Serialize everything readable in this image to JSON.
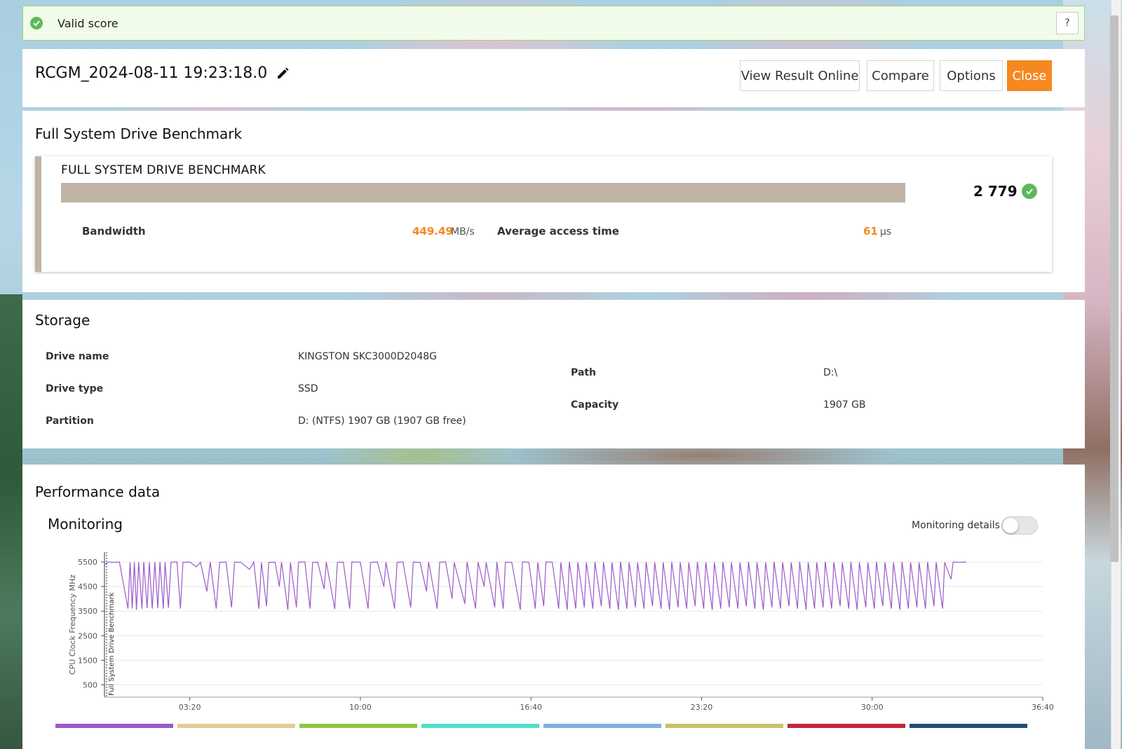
{
  "status": {
    "text": "Valid score",
    "help_label": "?"
  },
  "header": {
    "title": "RCGM_2024-08-11 19:23:18.0",
    "buttons": {
      "view_online": "View Result Online",
      "compare": "Compare",
      "options": "Options",
      "close": "Close"
    }
  },
  "benchmark": {
    "section_title": "Full System Drive Benchmark",
    "name": "FULL SYSTEM DRIVE BENCHMARK",
    "score": "2 779",
    "bandwidth_label": "Bandwidth",
    "bandwidth_value": "449.49",
    "bandwidth_unit": "MB/s",
    "access_label": "Average access time",
    "access_value": "61",
    "access_unit": "μs"
  },
  "storage": {
    "title": "Storage",
    "fields": [
      {
        "label": "Drive name",
        "value": "KINGSTON SKC3000D2048G"
      },
      {
        "label": "Drive type",
        "value": "SSD"
      },
      {
        "label": "Partition",
        "value": "D: (NTFS) 1907 GB (1907 GB free)"
      },
      {
        "label": "Path",
        "value": "D:\\"
      },
      {
        "label": "Capacity",
        "value": "1907 GB"
      }
    ]
  },
  "performance": {
    "title": "Performance data",
    "monitoring_title": "Monitoring",
    "monitoring_details_label": "Monitoring details",
    "monitoring_details_on": false
  },
  "colors": {
    "accent": "#f5891f",
    "bench_bar": "#c0b3a5",
    "valid_green": "#5cb85c",
    "line": "#9b59c9"
  },
  "legend_colors": [
    "#9b59c9",
    "#e2cd93",
    "#8dc63f",
    "#4fe0c8",
    "#7fb1e0",
    "#c5c36a",
    "#c0253b",
    "#1f4e79"
  ],
  "chart_data": {
    "type": "line",
    "ylabel": "CPU Clock Frequency MHz",
    "yticks": [
      500,
      1500,
      2500,
      3500,
      4500,
      5500
    ],
    "ylim": [
      0,
      5900
    ],
    "xticks": [
      "03:20",
      "10:00",
      "16:40",
      "23:20",
      "30:00",
      "36:40"
    ],
    "xlim_seconds": [
      0,
      2200
    ],
    "marker_label": "Full System Drive Benchmark",
    "series": [
      {
        "baseline": 5500,
        "end_seconds": 2020,
        "values": [
          [
            0,
            5400
          ],
          [
            10,
            5500
          ],
          [
            20,
            5480
          ],
          [
            35,
            5500
          ],
          [
            55,
            3600
          ],
          [
            60,
            5480
          ],
          [
            65,
            3600
          ],
          [
            70,
            5490
          ],
          [
            75,
            3550
          ],
          [
            80,
            5480
          ],
          [
            88,
            3600
          ],
          [
            92,
            5500
          ],
          [
            100,
            3620
          ],
          [
            105,
            5480
          ],
          [
            112,
            3600
          ],
          [
            118,
            5490
          ],
          [
            125,
            3620
          ],
          [
            130,
            5500
          ],
          [
            138,
            3600
          ],
          [
            142,
            5480
          ],
          [
            150,
            3630
          ],
          [
            156,
            5490
          ],
          [
            170,
            5500
          ],
          [
            178,
            3600
          ],
          [
            184,
            5480
          ],
          [
            200,
            5500
          ],
          [
            215,
            5300
          ],
          [
            225,
            5490
          ],
          [
            240,
            4300
          ],
          [
            248,
            5500
          ],
          [
            262,
            3600
          ],
          [
            270,
            5480
          ],
          [
            285,
            5500
          ],
          [
            298,
            3650
          ],
          [
            305,
            5490
          ],
          [
            320,
            5480
          ],
          [
            340,
            5200
          ],
          [
            350,
            5500
          ],
          [
            362,
            3600
          ],
          [
            368,
            5490
          ],
          [
            380,
            3700
          ],
          [
            385,
            5480
          ],
          [
            400,
            5490
          ],
          [
            410,
            4500
          ],
          [
            415,
            5500
          ],
          [
            430,
            3550
          ],
          [
            436,
            5480
          ],
          [
            450,
            3650
          ],
          [
            455,
            5490
          ],
          [
            470,
            5500
          ],
          [
            482,
            3600
          ],
          [
            488,
            5480
          ],
          [
            500,
            5490
          ],
          [
            515,
            4400
          ],
          [
            520,
            5500
          ],
          [
            540,
            3580
          ],
          [
            546,
            5480
          ],
          [
            560,
            5490
          ],
          [
            575,
            3600
          ],
          [
            580,
            5500
          ],
          [
            600,
            5490
          ],
          [
            618,
            3600
          ],
          [
            624,
            5480
          ],
          [
            640,
            5500
          ],
          [
            655,
            4500
          ],
          [
            660,
            5490
          ],
          [
            680,
            3600
          ],
          [
            686,
            5480
          ],
          [
            700,
            5500
          ],
          [
            718,
            3650
          ],
          [
            724,
            5490
          ],
          [
            740,
            5480
          ],
          [
            755,
            4300
          ],
          [
            760,
            5500
          ],
          [
            780,
            3600
          ],
          [
            786,
            5490
          ],
          [
            800,
            5500
          ],
          [
            815,
            4000
          ],
          [
            820,
            5480
          ],
          [
            845,
            3800
          ],
          [
            850,
            5500
          ],
          [
            870,
            3600
          ],
          [
            876,
            5490
          ],
          [
            890,
            4500
          ],
          [
            895,
            5480
          ],
          [
            915,
            3650
          ],
          [
            920,
            5500
          ],
          [
            935,
            3600
          ],
          [
            940,
            5490
          ],
          [
            955,
            5480
          ],
          [
            975,
            3550
          ],
          [
            980,
            5500
          ],
          [
            995,
            5490
          ],
          [
            1010,
            3600
          ],
          [
            1016,
            5480
          ],
          [
            1030,
            3700
          ],
          [
            1035,
            5500
          ],
          [
            1050,
            5490
          ],
          [
            1065,
            3600
          ],
          [
            1070,
            5480
          ],
          [
            1085,
            3550
          ],
          [
            1090,
            5500
          ],
          [
            1105,
            3600
          ],
          [
            1110,
            5490
          ],
          [
            1125,
            3650
          ],
          [
            1130,
            5480
          ],
          [
            1145,
            3600
          ],
          [
            1150,
            5500
          ],
          [
            1165,
            3700
          ],
          [
            1170,
            5490
          ],
          [
            1185,
            3600
          ],
          [
            1190,
            5480
          ],
          [
            1205,
            3550
          ],
          [
            1210,
            5500
          ],
          [
            1225,
            3600
          ],
          [
            1230,
            5490
          ],
          [
            1245,
            3650
          ],
          [
            1250,
            5480
          ],
          [
            1265,
            3600
          ],
          [
            1270,
            5500
          ],
          [
            1285,
            3700
          ],
          [
            1290,
            5490
          ],
          [
            1305,
            3600
          ],
          [
            1310,
            5480
          ],
          [
            1325,
            3550
          ],
          [
            1330,
            5500
          ],
          [
            1345,
            3650
          ],
          [
            1350,
            5490
          ],
          [
            1365,
            3600
          ],
          [
            1370,
            5480
          ],
          [
            1385,
            3700
          ],
          [
            1390,
            5500
          ],
          [
            1405,
            3600
          ],
          [
            1410,
            5490
          ],
          [
            1425,
            3550
          ],
          [
            1430,
            5480
          ],
          [
            1445,
            3600
          ],
          [
            1450,
            5500
          ],
          [
            1465,
            3650
          ],
          [
            1470,
            5490
          ],
          [
            1485,
            3600
          ],
          [
            1490,
            5480
          ],
          [
            1505,
            3700
          ],
          [
            1510,
            5500
          ],
          [
            1525,
            3600
          ],
          [
            1530,
            5490
          ],
          [
            1545,
            3550
          ],
          [
            1550,
            5480
          ],
          [
            1565,
            3650
          ],
          [
            1570,
            5500
          ],
          [
            1585,
            3600
          ],
          [
            1590,
            5490
          ],
          [
            1605,
            3700
          ],
          [
            1610,
            5480
          ],
          [
            1625,
            3600
          ],
          [
            1630,
            5500
          ],
          [
            1645,
            3550
          ],
          [
            1650,
            5490
          ],
          [
            1665,
            3600
          ],
          [
            1670,
            5480
          ],
          [
            1685,
            3650
          ],
          [
            1690,
            5500
          ],
          [
            1705,
            3600
          ],
          [
            1710,
            5490
          ],
          [
            1725,
            3700
          ],
          [
            1730,
            5480
          ],
          [
            1745,
            3600
          ],
          [
            1750,
            5500
          ],
          [
            1765,
            3550
          ],
          [
            1770,
            5490
          ],
          [
            1785,
            3650
          ],
          [
            1790,
            5480
          ],
          [
            1805,
            3600
          ],
          [
            1810,
            5500
          ],
          [
            1825,
            3700
          ],
          [
            1830,
            5490
          ],
          [
            1845,
            3600
          ],
          [
            1850,
            5480
          ],
          [
            1865,
            3550
          ],
          [
            1870,
            5500
          ],
          [
            1885,
            3600
          ],
          [
            1890,
            5490
          ],
          [
            1905,
            3650
          ],
          [
            1910,
            5480
          ],
          [
            1925,
            3600
          ],
          [
            1930,
            5500
          ],
          [
            1945,
            3700
          ],
          [
            1950,
            5490
          ],
          [
            1965,
            3600
          ],
          [
            1970,
            5480
          ],
          [
            1985,
            4800
          ],
          [
            1990,
            5500
          ],
          [
            2005,
            5480
          ],
          [
            2020,
            5500
          ]
        ]
      }
    ]
  }
}
